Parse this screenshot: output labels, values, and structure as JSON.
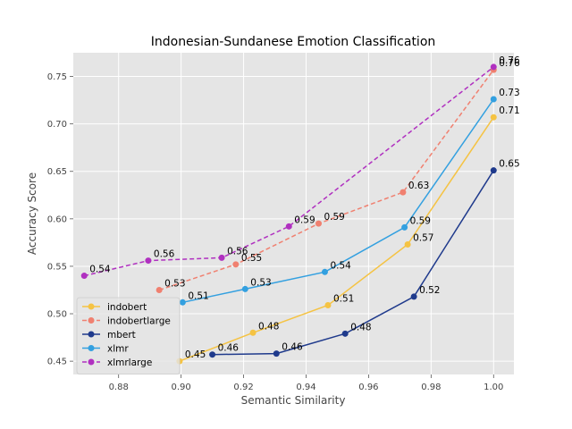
{
  "chart_data": {
    "type": "line",
    "title": "Indonesian-Sundanese Emotion Classification",
    "xlabel": "Semantic Similarity",
    "ylabel": "Accuracy Score",
    "xlim": [
      0.8655,
      1.0065
    ],
    "ylim": [
      0.436,
      0.775
    ],
    "xticks": [
      "0.88",
      "0.90",
      "0.92",
      "0.94",
      "0.96",
      "0.98",
      "1.00"
    ],
    "xtick_values": [
      0.88,
      0.9,
      0.92,
      0.94,
      0.96,
      0.98,
      1.0
    ],
    "yticks": [
      "0.45",
      "0.50",
      "0.55",
      "0.60",
      "0.65",
      "0.70",
      "0.75"
    ],
    "ytick_values": [
      0.45,
      0.5,
      0.55,
      0.6,
      0.65,
      0.7,
      0.75
    ],
    "grid": true,
    "legend_position": "lower-left",
    "series": [
      {
        "name": "indobert",
        "color": "#f5c343",
        "dashed": false,
        "points": [
          {
            "x": 0.8995,
            "y": 0.45,
            "label": "0.45"
          },
          {
            "x": 0.923,
            "y": 0.48,
            "label": "0.48"
          },
          {
            "x": 0.947,
            "y": 0.509,
            "label": "0.51"
          },
          {
            "x": 0.9725,
            "y": 0.573,
            "label": "0.57"
          },
          {
            "x": 1.0,
            "y": 0.707,
            "label": "0.71"
          }
        ]
      },
      {
        "name": "indobertlarge",
        "color": "#f08070",
        "dashed": true,
        "points": [
          {
            "x": 0.893,
            "y": 0.525,
            "label": "0.53"
          },
          {
            "x": 0.9175,
            "y": 0.552,
            "label": "0.55"
          },
          {
            "x": 0.944,
            "y": 0.595,
            "label": "0.59"
          },
          {
            "x": 0.971,
            "y": 0.628,
            "label": "0.63"
          },
          {
            "x": 1.0,
            "y": 0.757,
            "label": "0.76"
          }
        ]
      },
      {
        "name": "mbert",
        "color": "#1f3a8c",
        "dashed": false,
        "points": [
          {
            "x": 0.91,
            "y": 0.457,
            "label": "0.46"
          },
          {
            "x": 0.9305,
            "y": 0.458,
            "label": "0.46"
          },
          {
            "x": 0.9525,
            "y": 0.479,
            "label": "0.48"
          },
          {
            "x": 0.9745,
            "y": 0.518,
            "label": "0.52"
          },
          {
            "x": 1.0,
            "y": 0.651,
            "label": "0.65"
          }
        ]
      },
      {
        "name": "xlmr",
        "color": "#33a0e0",
        "dashed": false,
        "points": [
          {
            "x": 0.9005,
            "y": 0.512,
            "label": "0.51"
          },
          {
            "x": 0.9205,
            "y": 0.526,
            "label": "0.53"
          },
          {
            "x": 0.946,
            "y": 0.544,
            "label": "0.54"
          },
          {
            "x": 0.9715,
            "y": 0.591,
            "label": "0.59"
          },
          {
            "x": 1.0,
            "y": 0.726,
            "label": "0.73"
          }
        ]
      },
      {
        "name": "xlmrlarge",
        "color": "#b030c0",
        "dashed": true,
        "points": [
          {
            "x": 0.869,
            "y": 0.54,
            "label": "0.54"
          },
          {
            "x": 0.8895,
            "y": 0.556,
            "label": "0.56"
          },
          {
            "x": 0.913,
            "y": 0.559,
            "label": "0.56"
          },
          {
            "x": 0.9345,
            "y": 0.592,
            "label": "0.59"
          },
          {
            "x": 1.0,
            "y": 0.76,
            "label": "0.76"
          }
        ]
      }
    ]
  }
}
